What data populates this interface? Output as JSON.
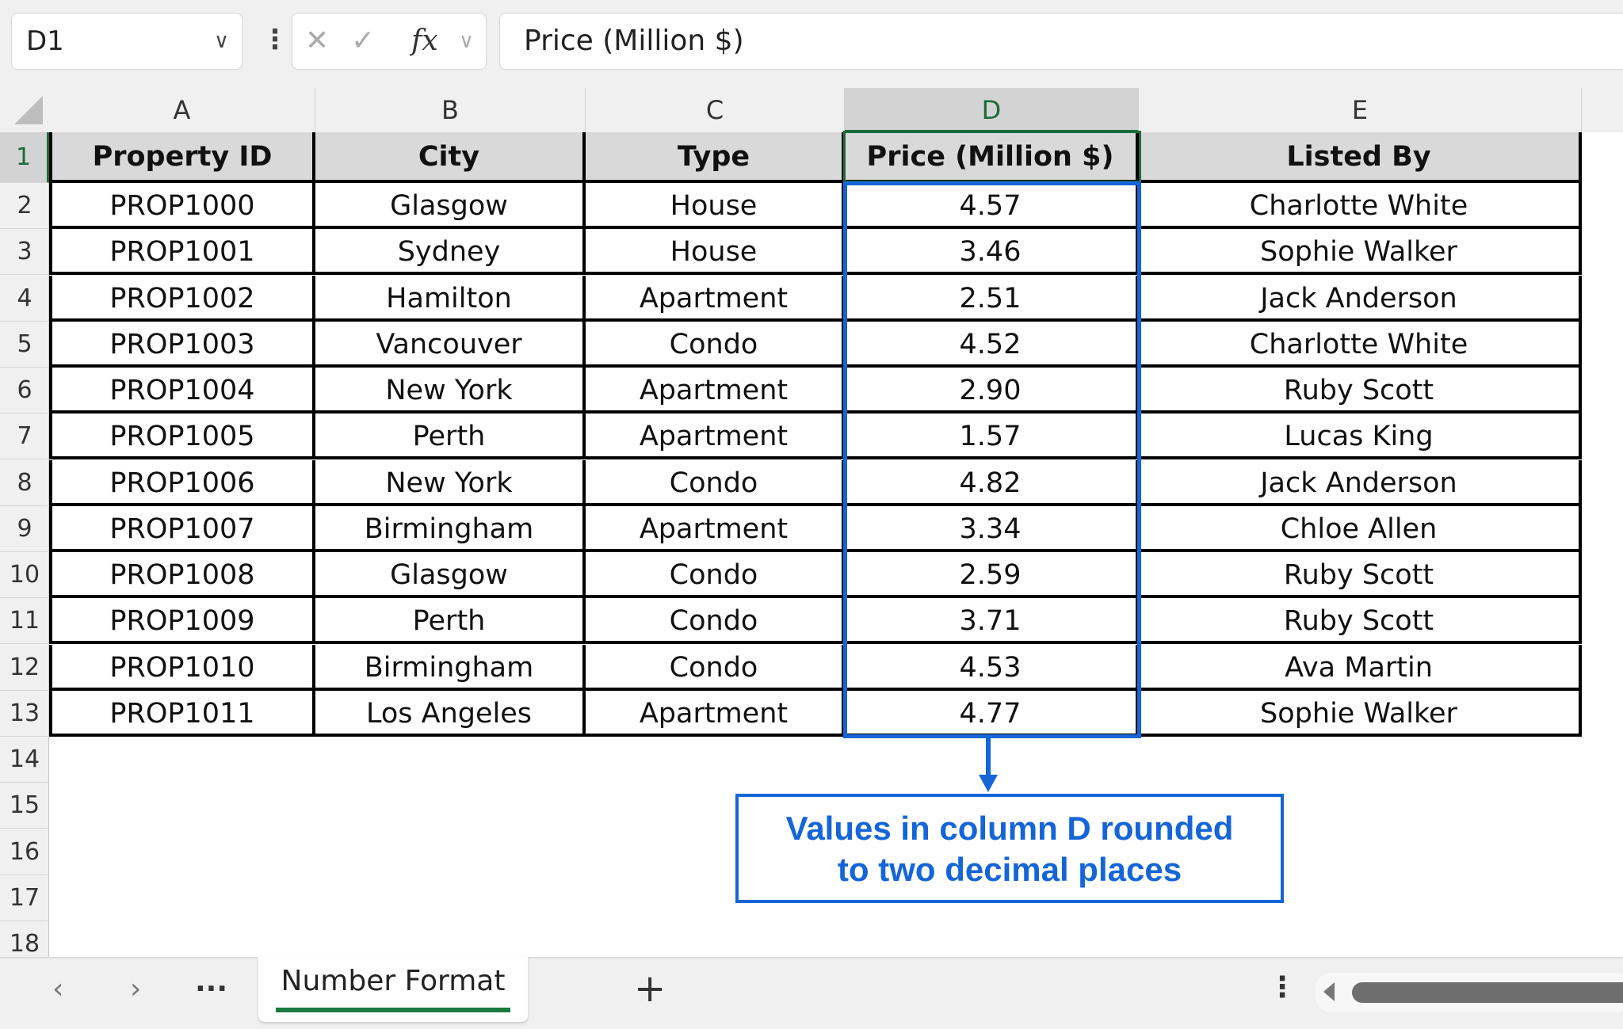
{
  "namebox": {
    "value": "D1"
  },
  "formula_bar": {
    "cancel_icon": "✕",
    "confirm_icon": "✓",
    "fx_label": "fx",
    "value": "Price (Million $)"
  },
  "columns": [
    "A",
    "B",
    "C",
    "D",
    "E"
  ],
  "selected_column": "D",
  "row_numbers": [
    "1",
    "2",
    "3",
    "4",
    "5",
    "6",
    "7",
    "8",
    "9",
    "10",
    "11",
    "12",
    "13",
    "14",
    "15",
    "16",
    "17",
    "18"
  ],
  "table": {
    "headers": [
      "Property ID",
      "City",
      "Type",
      "Price (Million $)",
      "Listed By"
    ],
    "rows": [
      [
        "PROP1000",
        "Glasgow",
        "House",
        "4.57",
        "Charlotte White"
      ],
      [
        "PROP1001",
        "Sydney",
        "House",
        "3.46",
        "Sophie Walker"
      ],
      [
        "PROP1002",
        "Hamilton",
        "Apartment",
        "2.51",
        "Jack Anderson"
      ],
      [
        "PROP1003",
        "Vancouver",
        "Condo",
        "4.52",
        "Charlotte White"
      ],
      [
        "PROP1004",
        "New York",
        "Apartment",
        "2.90",
        "Ruby Scott"
      ],
      [
        "PROP1005",
        "Perth",
        "Apartment",
        "1.57",
        "Lucas King"
      ],
      [
        "PROP1006",
        "New York",
        "Condo",
        "4.82",
        "Jack Anderson"
      ],
      [
        "PROP1007",
        "Birmingham",
        "Apartment",
        "3.34",
        "Chloe Allen"
      ],
      [
        "PROP1008",
        "Glasgow",
        "Condo",
        "2.59",
        "Ruby Scott"
      ],
      [
        "PROP1009",
        "Perth",
        "Condo",
        "3.71",
        "Ruby Scott"
      ],
      [
        "PROP1010",
        "Birmingham",
        "Condo",
        "4.53",
        "Ava Martin"
      ],
      [
        "PROP1011",
        "Los Angeles",
        "Apartment",
        "4.77",
        "Sophie Walker"
      ]
    ]
  },
  "callout": {
    "line1": "Values in column D rounded",
    "line2": "to two decimal places",
    "color": "#1565d8"
  },
  "sheet_tabs": {
    "active": "Number Format",
    "prev": "‹",
    "next": "›",
    "more": "···",
    "add": "+",
    "accent": "#1a7a40"
  }
}
